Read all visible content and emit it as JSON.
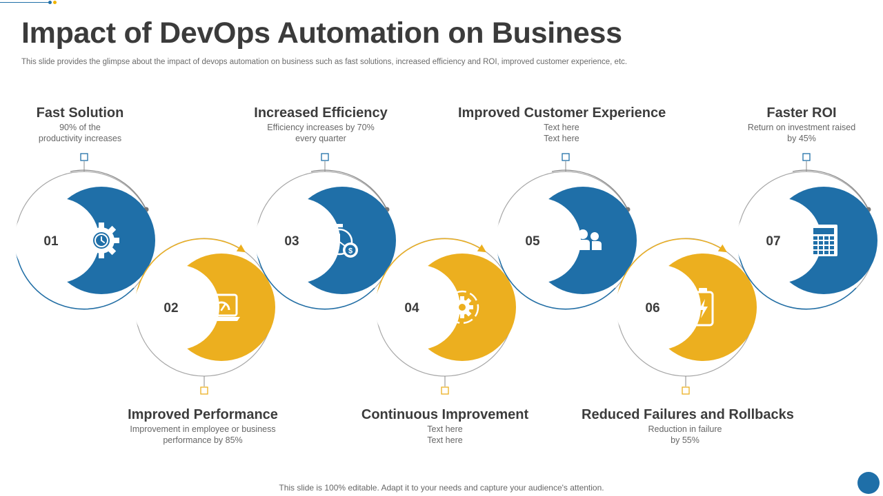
{
  "title": "Impact of DevOps Automation on Business",
  "subtitle": "This slide provides the glimpse about the impact of devops automation on business such as fast solutions, increased efficiency and ROI,  improved customer experience, etc.",
  "footer": "This slide is 100% editable. Adapt it to your needs and capture your audience's attention.",
  "colors": {
    "blue": "#1f6fa8",
    "yellow": "#ecaf1f",
    "title": "#3b3b3b",
    "text": "#666666",
    "ring": "#9a9a9a"
  },
  "steps": [
    {
      "number": "01",
      "heading": "Fast Solution",
      "desc": [
        "90% of the",
        "productivity  increases"
      ],
      "color": "blue",
      "icon": "gear-clock-icon"
    },
    {
      "number": "02",
      "heading": "Improved Performance",
      "desc": [
        "Improvement  in employee or business",
        "performance  by 85%"
      ],
      "color": "yellow",
      "icon": "laptop-speedometer-icon"
    },
    {
      "number": "03",
      "heading": "Increased Efficiency",
      "desc": [
        "Efficiency increases by 70%",
        "every  quarter"
      ],
      "color": "blue",
      "icon": "stopwatch-dollar-icon"
    },
    {
      "number": "04",
      "heading": "Continuous Improvement",
      "desc": [
        "Text here",
        "Text here"
      ],
      "color": "yellow",
      "icon": "cycle-gear-icon"
    },
    {
      "number": "05",
      "heading": "Improved Customer Experience",
      "desc": [
        "Text here",
        "Text here"
      ],
      "color": "blue",
      "icon": "customers-group-icon"
    },
    {
      "number": "06",
      "heading": "Reduced Failures and Rollbacks",
      "desc": [
        "Reduction in failure",
        "by 55%"
      ],
      "color": "yellow",
      "icon": "battery-charge-icon"
    },
    {
      "number": "07",
      "heading": "Faster ROI",
      "desc": [
        "Return  on  investment  raised",
        "by 45%"
      ],
      "color": "blue",
      "icon": "calculator-icon"
    }
  ]
}
